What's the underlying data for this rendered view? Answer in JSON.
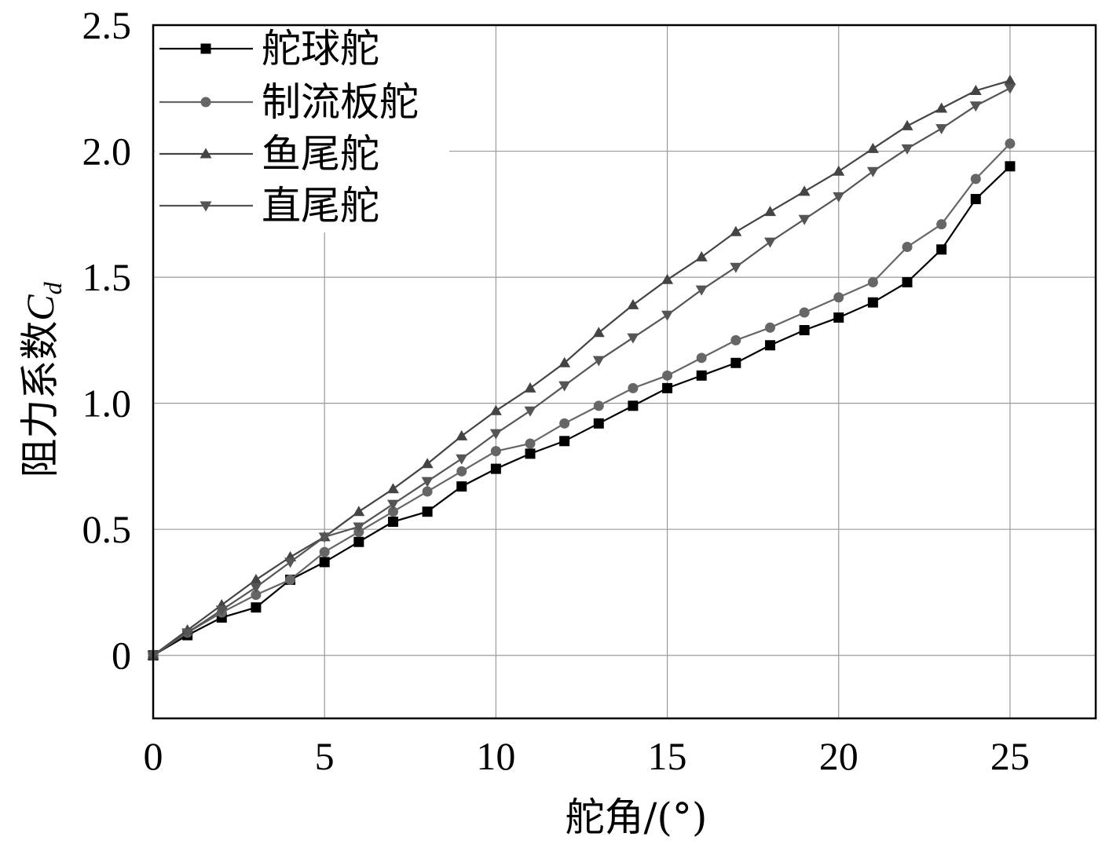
{
  "chart_data": {
    "type": "line",
    "xlabel": "舵角/(°)",
    "ylabel": "阻力系数",
    "ylabel_symbol": "C",
    "ylabel_subscript": "d",
    "xlim": [
      0,
      27.5
    ],
    "ylim": [
      -0.25,
      2.5
    ],
    "xticks": [
      0,
      5,
      10,
      15,
      20,
      25
    ],
    "xtick_labels": [
      "0",
      "5",
      "10",
      "15",
      "20",
      "25"
    ],
    "yticks": [
      0,
      0.5,
      1.0,
      1.5,
      2.0,
      2.5
    ],
    "ytick_labels": [
      "0",
      "0.5",
      "1.0",
      "1.5",
      "2.0",
      "2.5"
    ],
    "grid": true,
    "legend_position": "top-left",
    "x": [
      0,
      1,
      2,
      3,
      4,
      5,
      6,
      7,
      8,
      9,
      10,
      11,
      12,
      13,
      14,
      15,
      16,
      17,
      18,
      19,
      20,
      21,
      22,
      23,
      24,
      25
    ],
    "series": [
      {
        "name": "舵球舵",
        "marker": "square",
        "color": "#000000",
        "values": [
          0,
          0.08,
          0.15,
          0.19,
          0.3,
          0.37,
          0.45,
          0.53,
          0.57,
          0.67,
          0.74,
          0.8,
          0.85,
          0.92,
          0.99,
          1.06,
          1.11,
          1.16,
          1.23,
          1.29,
          1.34,
          1.4,
          1.48,
          1.61,
          1.81,
          1.94
        ]
      },
      {
        "name": "制流板舵",
        "marker": "circle",
        "color": "#666666",
        "values": [
          0,
          0.09,
          0.17,
          0.24,
          0.3,
          0.41,
          0.49,
          0.57,
          0.65,
          0.73,
          0.81,
          0.84,
          0.92,
          0.99,
          1.06,
          1.11,
          1.18,
          1.25,
          1.3,
          1.36,
          1.42,
          1.48,
          1.62,
          1.71,
          1.89,
          2.03
        ]
      },
      {
        "name": "鱼尾舵",
        "marker": "triangle-up",
        "color": "#444444",
        "values": [
          0,
          0.1,
          0.2,
          0.3,
          0.39,
          0.47,
          0.57,
          0.66,
          0.76,
          0.87,
          0.97,
          1.06,
          1.16,
          1.28,
          1.39,
          1.49,
          1.58,
          1.68,
          1.76,
          1.84,
          1.92,
          2.01,
          2.1,
          2.17,
          2.24,
          2.28
        ]
      },
      {
        "name": "直尾舵",
        "marker": "triangle-down",
        "color": "#555555",
        "values": [
          0,
          0.09,
          0.18,
          0.27,
          0.37,
          0.47,
          0.51,
          0.6,
          0.69,
          0.78,
          0.88,
          0.97,
          1.07,
          1.17,
          1.26,
          1.35,
          1.45,
          1.54,
          1.64,
          1.73,
          1.82,
          1.92,
          2.01,
          2.09,
          2.18,
          2.25
        ]
      }
    ]
  }
}
